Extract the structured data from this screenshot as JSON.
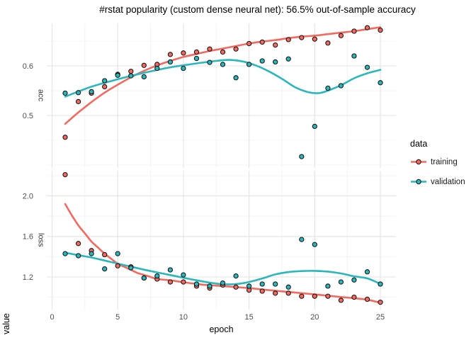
{
  "title": "#rstat popularity (custom dense neural net): 56.5% out-of-sample accuracy",
  "axes": {
    "x": {
      "label": "epoch",
      "ticks": [
        0,
        5,
        10,
        15,
        20,
        25
      ],
      "minor_ticks": [
        2.5,
        7.5,
        12.5,
        17.5,
        22.5
      ],
      "domain": [
        -0.405,
        26.185
      ]
    },
    "y": {
      "label": "value"
    }
  },
  "facets": [
    {
      "label": "acc",
      "ticks": [
        {
          "v": 0.6,
          "text": "0.6"
        },
        {
          "v": 0.5,
          "text": "0.5"
        }
      ],
      "minor": [
        0.4,
        0.45,
        0.55,
        0.65
      ],
      "domain": [
        0.3943,
        0.6857
      ]
    },
    {
      "label": "loss",
      "ticks": [
        {
          "v": 2.0,
          "text": "2.0"
        },
        {
          "v": 1.6,
          "text": "1.6"
        },
        {
          "v": 1.2,
          "text": "1.2"
        }
      ],
      "minor": [
        1.0,
        1.4,
        1.8,
        2.2
      ],
      "domain": [
        0.8783,
        2.249
      ]
    }
  ],
  "legend": {
    "title": "data",
    "entries": [
      {
        "label": "training",
        "color": "#f4695f"
      },
      {
        "label": "validation",
        "color": "#2ab7bc"
      }
    ]
  },
  "colors": {
    "training": "#f4695f",
    "validation": "#2ab7bc",
    "point_stroke": "#111111",
    "grid_major": "#e3e3e3",
    "grid_minor": "#f0f0f0",
    "tick_label": "#4d4d4d"
  },
  "chart_data": {
    "type": "scatter",
    "note": "faceted scatter with loess smooth lines, facets acc/loss, series training/validation",
    "legend_position": "right",
    "grid": true,
    "epochs": [
      1,
      2,
      3,
      4,
      5,
      6,
      7,
      8,
      9,
      10,
      11,
      12,
      13,
      14,
      15,
      16,
      17,
      18,
      19,
      20,
      21,
      22,
      23,
      24,
      25
    ],
    "facets": [
      {
        "metric": "acc",
        "series": [
          {
            "name": "training",
            "values": [
              0.456,
              0.528,
              0.545,
              0.558,
              0.583,
              0.589,
              0.601,
              0.603,
              0.623,
              0.626,
              0.628,
              0.634,
              0.628,
              0.634,
              0.645,
              0.648,
              0.642,
              0.653,
              0.657,
              0.654,
              0.646,
              0.661,
              0.67,
              0.677,
              0.672
            ]
          },
          {
            "name": "validation",
            "values": [
              0.545,
              0.546,
              0.548,
              0.57,
              0.581,
              0.58,
              0.578,
              0.595,
              0.608,
              0.595,
              0.615,
              0.607,
              0.603,
              0.576,
              0.603,
              0.61,
              0.608,
              0.614,
              0.417,
              0.478,
              0.555,
              0.56,
              0.62,
              0.597,
              0.566
            ]
          }
        ],
        "smooth": [
          {
            "name": "training",
            "points": [
              [
                1,
                0.483
              ],
              [
                2,
                0.506
              ],
              [
                3,
                0.527
              ],
              [
                4,
                0.546
              ],
              [
                5,
                0.562
              ],
              [
                6,
                0.577
              ],
              [
                7,
                0.59
              ],
              [
                8,
                0.601
              ],
              [
                9,
                0.61
              ],
              [
                10,
                0.618
              ],
              [
                11,
                0.624
              ],
              [
                12,
                0.63
              ],
              [
                13,
                0.635
              ],
              [
                14,
                0.64
              ],
              [
                15,
                0.645
              ],
              [
                16,
                0.649
              ],
              [
                17,
                0.652
              ],
              [
                18,
                0.656
              ],
              [
                19,
                0.659
              ],
              [
                20,
                0.661
              ],
              [
                21,
                0.664
              ],
              [
                22,
                0.667
              ],
              [
                23,
                0.67
              ],
              [
                24,
                0.674
              ],
              [
                25,
                0.678
              ]
            ]
          },
          {
            "name": "validation",
            "points": [
              [
                1,
                0.538
              ],
              [
                3,
                0.558
              ],
              [
                5,
                0.573
              ],
              [
                7,
                0.586
              ],
              [
                9,
                0.597
              ],
              [
                11,
                0.605
              ],
              [
                12.5,
                0.61
              ],
              [
                13.5,
                0.612
              ],
              [
                14.5,
                0.609
              ],
              [
                15.5,
                0.601
              ],
              [
                16.5,
                0.589
              ],
              [
                17.5,
                0.574
              ],
              [
                18.5,
                0.557
              ],
              [
                19.5,
                0.547
              ],
              [
                20.3,
                0.545
              ],
              [
                21,
                0.55
              ],
              [
                22,
                0.561
              ],
              [
                23,
                0.575
              ],
              [
                24,
                0.585
              ],
              [
                25,
                0.592
              ]
            ]
          }
        ]
      },
      {
        "metric": "loss",
        "series": [
          {
            "name": "training",
            "values": [
              2.21,
              1.53,
              1.46,
              1.42,
              1.31,
              1.3,
              1.19,
              1.18,
              1.15,
              1.15,
              1.11,
              1.09,
              1.12,
              1.1,
              1.07,
              1.06,
              1.04,
              1.04,
              1.01,
              1.01,
              1.01,
              0.97,
              1.0,
              0.98,
              0.95
            ]
          },
          {
            "name": "validation",
            "values": [
              1.43,
              1.41,
              1.43,
              1.28,
              1.43,
              1.29,
              1.19,
              1.21,
              1.27,
              1.22,
              1.13,
              1.11,
              1.14,
              1.21,
              1.11,
              1.13,
              1.13,
              1.1,
              1.57,
              1.52,
              1.11,
              1.15,
              1.17,
              1.25,
              1.13
            ]
          }
        ],
        "smooth": [
          {
            "name": "training",
            "points": [
              [
                1,
                1.92
              ],
              [
                1.5,
                1.81
              ],
              [
                2,
                1.71
              ],
              [
                2.5,
                1.63
              ],
              [
                3,
                1.55
              ],
              [
                3.5,
                1.49
              ],
              [
                4,
                1.43
              ],
              [
                4.5,
                1.38
              ],
              [
                5,
                1.33
              ],
              [
                5.5,
                1.3
              ],
              [
                6,
                1.27
              ],
              [
                6.5,
                1.24
              ],
              [
                7,
                1.22
              ],
              [
                7.5,
                1.2
              ],
              [
                8,
                1.18
              ],
              [
                9,
                1.167
              ],
              [
                10,
                1.148
              ],
              [
                11,
                1.131
              ],
              [
                12,
                1.118
              ],
              [
                13,
                1.11
              ],
              [
                14,
                1.1
              ],
              [
                15,
                1.09
              ],
              [
                16,
                1.076
              ],
              [
                17,
                1.064
              ],
              [
                18,
                1.052
              ],
              [
                19,
                1.04
              ],
              [
                20,
                1.028
              ],
              [
                21,
                1.015
              ],
              [
                22,
                1.002
              ],
              [
                23,
                0.99
              ],
              [
                24,
                0.975
              ],
              [
                25,
                0.945
              ]
            ]
          },
          {
            "name": "validation",
            "points": [
              [
                1,
                1.44
              ],
              [
                2,
                1.415
              ],
              [
                3,
                1.392
              ],
              [
                4,
                1.362
              ],
              [
                5,
                1.332
              ],
              [
                6,
                1.302
              ],
              [
                7,
                1.272
              ],
              [
                8,
                1.245
              ],
              [
                9,
                1.219
              ],
              [
                10,
                1.192
              ],
              [
                11,
                1.167
              ],
              [
                12,
                1.144
              ],
              [
                13,
                1.128
              ],
              [
                14,
                1.13
              ],
              [
                15,
                1.15
              ],
              [
                16,
                1.185
              ],
              [
                17,
                1.225
              ],
              [
                18,
                1.248
              ],
              [
                19,
                1.258
              ],
              [
                20,
                1.26
              ],
              [
                21,
                1.253
              ],
              [
                22,
                1.235
              ],
              [
                23,
                1.207
              ],
              [
                24,
                1.186
              ],
              [
                25,
                1.132
              ]
            ]
          }
        ]
      }
    ]
  }
}
